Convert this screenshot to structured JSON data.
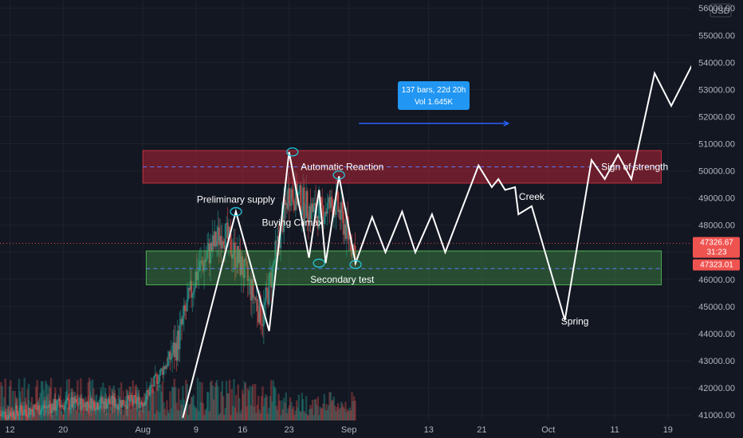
{
  "chart_data": {
    "type": "candlestick",
    "currency": "USD",
    "y_ticks": [
      56000,
      55000,
      54000,
      53000,
      52000,
      51000,
      50000,
      49000,
      48000,
      47000,
      46000,
      45000,
      44000,
      43000,
      42000,
      41000
    ],
    "y_tick_labels": [
      "56000.00",
      "55000.00",
      "54000.00",
      "53000.00",
      "52000.00",
      "51000.00",
      "50000.00",
      "49000.00",
      "48000.00",
      "47000.00",
      "46000.00",
      "45000.00",
      "44000.00",
      "43000.00",
      "42000.00",
      "41000.00"
    ],
    "ylim": [
      40800,
      56300
    ],
    "x_ticks": [
      {
        "label": "12",
        "day": -20
      },
      {
        "label": "20",
        "day": -12
      },
      {
        "label": "Aug",
        "day": 0
      },
      {
        "label": "9",
        "day": 8
      },
      {
        "label": "16",
        "day": 15
      },
      {
        "label": "23",
        "day": 22
      },
      {
        "label": "Sep",
        "day": 31
      },
      {
        "label": "13",
        "day": 43
      },
      {
        "label": "21",
        "day": 51
      },
      {
        "label": "Oct",
        "day": 61
      },
      {
        "label": "11",
        "day": 71
      },
      {
        "label": "19",
        "day": 79
      }
    ],
    "xlim_days": [
      -21.5,
      82.5
    ],
    "last_price": {
      "value": 47326.67,
      "label": "47326.67",
      "countdown": "31:23"
    },
    "current_price": {
      "value": 47323.01,
      "label": "47323.01"
    },
    "zones": [
      {
        "name": "resistance",
        "from_day": 0,
        "to_day": 78,
        "low": 49550,
        "high": 50750,
        "mid": 50150,
        "fill": "rgba(178,34,52,0.55)",
        "stroke": "#c2313f"
      },
      {
        "name": "support",
        "from_day": 0.5,
        "to_day": 78,
        "low": 45800,
        "high": 47050,
        "mid": 46400,
        "fill": "rgba(76,175,80,0.35)",
        "stroke": "#4caf50"
      }
    ],
    "wyckoff_path": [
      [
        6,
        40900
      ],
      [
        14,
        48500
      ],
      [
        19,
        44100
      ],
      [
        22,
        50700
      ],
      [
        25,
        46800
      ],
      [
        26.5,
        49300
      ],
      [
        27.5,
        46600
      ],
      [
        29.5,
        49800
      ],
      [
        32,
        46600
      ],
      [
        34.5,
        48300
      ],
      [
        36.5,
        47000
      ],
      [
        39,
        48500
      ],
      [
        41,
        47000
      ],
      [
        43.5,
        48400
      ],
      [
        45.5,
        47000
      ],
      [
        50.5,
        50200
      ],
      [
        52.5,
        49400
      ],
      [
        53.5,
        49700
      ],
      [
        54.5,
        49300
      ],
      [
        56,
        49400
      ],
      [
        56.5,
        48400
      ],
      [
        58.5,
        48700
      ],
      [
        63.5,
        44500
      ],
      [
        67.5,
        50400
      ],
      [
        69.5,
        49700
      ],
      [
        71.5,
        50600
      ],
      [
        73.5,
        49700
      ],
      [
        77,
        53600
      ],
      [
        79.5,
        52400
      ],
      [
        84.5,
        54800
      ]
    ],
    "annotations": [
      {
        "text": "Preliminary supply",
        "day": 14,
        "value": 48950
      },
      {
        "text": "Buying Climax",
        "day": 22.5,
        "value": 48100
      },
      {
        "text": "Automatic Reaction",
        "day": 30,
        "value": 50150
      },
      {
        "text": "Secondary test",
        "day": 30,
        "value": 46000
      },
      {
        "text": "Creek",
        "day": 58.5,
        "value": 49050
      },
      {
        "text": "Spring",
        "day": 65,
        "value": 44450
      },
      {
        "text": "Sign of strength",
        "day": 74,
        "value": 50150
      }
    ],
    "markers": [
      {
        "day": 14,
        "value": 48500
      },
      {
        "day": 22.5,
        "value": 50700
      },
      {
        "day": 29.5,
        "value": 49850
      },
      {
        "day": 26.5,
        "value": 46600
      },
      {
        "day": 32,
        "value": 46550
      }
    ],
    "measure": {
      "from_day": 32.5,
      "to_day": 55,
      "value": 51750,
      "line1": "137 bars, 22d 20h",
      "line2": "Vol 1.645K"
    },
    "colors": {
      "up": "#26a69a",
      "down": "#ef5350",
      "white": "#ffffff",
      "measure": "#2962ff",
      "accent_marker": "#26c6da"
    }
  }
}
